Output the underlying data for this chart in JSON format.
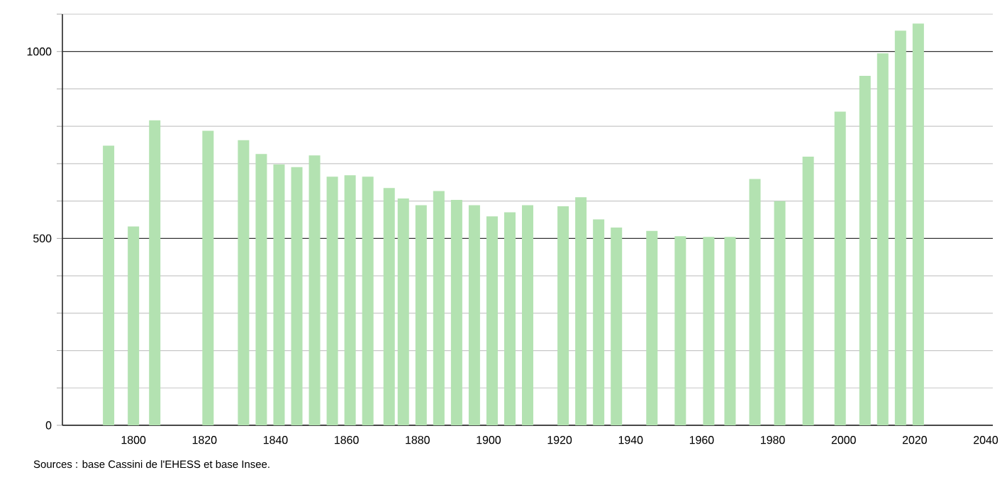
{
  "chart_data": {
    "type": "bar",
    "color": "#b3e2b1",
    "x": [
      1793,
      1800,
      1806,
      1821,
      1831,
      1836,
      1841,
      1846,
      1851,
      1856,
      1861,
      1866,
      1872,
      1876,
      1881,
      1886,
      1891,
      1896,
      1901,
      1906,
      1911,
      1921,
      1926,
      1931,
      1936,
      1946,
      1954,
      1962,
      1968,
      1975,
      1982,
      1990,
      1999,
      2006,
      2011,
      2016,
      2021
    ],
    "values": [
      748,
      532,
      816,
      788,
      763,
      726,
      698,
      691,
      722,
      665,
      669,
      665,
      635,
      607,
      589,
      627,
      603,
      589,
      559,
      570,
      589,
      586,
      610,
      551,
      529,
      520,
      506,
      504,
      504,
      659,
      600,
      719,
      839,
      935,
      995,
      1056,
      1075
    ],
    "xlim": [
      1780,
      2042
    ],
    "xticks": [
      1800,
      1820,
      1840,
      1860,
      1880,
      1900,
      1920,
      1940,
      1960,
      1980,
      2000,
      2020,
      2040
    ],
    "ylim": [
      0,
      1100
    ],
    "yticks": [
      0,
      {
        "value": 100,
        "label": null
      },
      {
        "value": 200,
        "label": null
      },
      {
        "value": 300,
        "label": null
      },
      {
        "value": 400,
        "label": null
      },
      500,
      {
        "value": 600,
        "label": null
      },
      {
        "value": 700,
        "label": null
      },
      {
        "value": 800,
        "label": null
      },
      {
        "value": 900,
        "label": null
      },
      1000,
      {
        "value": 1100,
        "label": null
      }
    ],
    "grid": "y",
    "annotations": [
      "Sources : base Cassini de l'EHESS et base Insee."
    ]
  }
}
